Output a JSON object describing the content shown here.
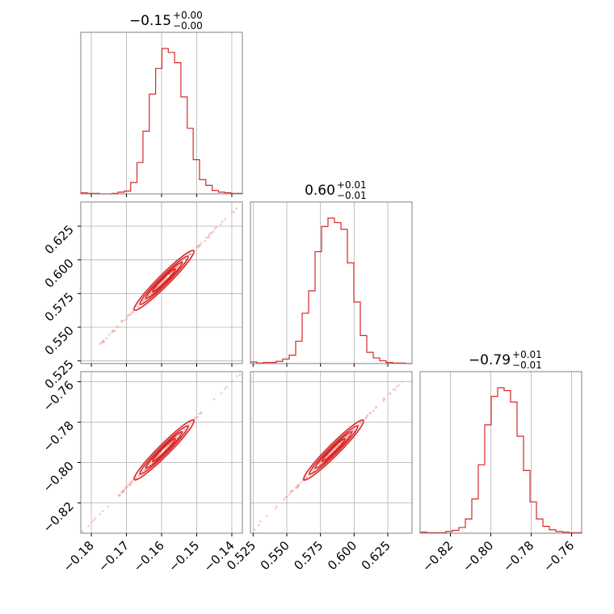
{
  "chart_data": {
    "type": "corner",
    "color": "#d62728",
    "panels": [
      {
        "kind": "hist",
        "var": 0,
        "title_value": "−0.15",
        "title_plus": "+0.00",
        "title_minus": "−0.00",
        "xlim": [
          -0.183,
          -0.137
        ],
        "xticks": [
          -0.18,
          -0.17,
          -0.16,
          -0.15,
          -0.14
        ],
        "bins_x": [
          -0.183,
          -0.1812,
          -0.1795,
          -0.1777,
          -0.1759,
          -0.1741,
          -0.1724,
          -0.1706,
          -0.1688,
          -0.167,
          -0.1653,
          -0.1635,
          -0.1617,
          -0.1599,
          -0.1581,
          -0.1563,
          -0.1545,
          -0.1527,
          -0.151,
          -0.1492,
          -0.1474,
          -0.1456,
          -0.1438,
          -0.142,
          -0.1403,
          -0.137
        ],
        "counts": [
          2,
          1,
          1,
          0,
          0,
          1,
          3,
          5,
          20,
          55,
          110,
          175,
          220,
          255,
          248,
          230,
          170,
          115,
          60,
          25,
          15,
          6,
          3,
          2,
          1
        ]
      },
      {
        "kind": "hist",
        "var": 1,
        "title_value": "0.60",
        "title_plus": "+0.01",
        "title_minus": "−0.01",
        "xlim": [
          0.523,
          0.643
        ],
        "xticks": [
          0.525,
          0.55,
          0.575,
          0.6,
          0.625
        ],
        "xtick_labels": [
          "0.525",
          "0.550",
          "0.575",
          "0.600",
          "0.625"
        ],
        "bins_x": [
          0.523,
          0.5278,
          0.5326,
          0.5374,
          0.5422,
          0.547,
          0.5518,
          0.5566,
          0.5614,
          0.5662,
          0.571,
          0.5758,
          0.5806,
          0.5854,
          0.5902,
          0.595,
          0.5998,
          0.6046,
          0.6094,
          0.6142,
          0.619,
          0.6238,
          0.6286,
          0.6334,
          0.6382,
          0.643
        ],
        "counts": [
          3,
          1,
          2,
          2,
          4,
          8,
          15,
          40,
          90,
          130,
          200,
          245,
          260,
          252,
          240,
          180,
          110,
          50,
          20,
          10,
          5,
          2,
          1,
          1,
          0
        ]
      },
      {
        "kind": "hist",
        "var": 2,
        "title_value": "−0.79",
        "title_plus": "+0.01",
        "title_minus": "−0.01",
        "xlim": [
          -0.835,
          -0.755
        ],
        "xticks": [
          -0.82,
          -0.8,
          -0.78,
          -0.76
        ],
        "xtick_labels": [
          "−0.82",
          "−0.80",
          "−0.78",
          "−0.76"
        ],
        "bins_x": [
          -0.835,
          -0.8318,
          -0.8286,
          -0.8254,
          -0.8222,
          -0.819,
          -0.8158,
          -0.8126,
          -0.8094,
          -0.8062,
          -0.803,
          -0.7998,
          -0.7966,
          -0.7934,
          -0.7902,
          -0.787,
          -0.7838,
          -0.7806,
          -0.7774,
          -0.7742,
          -0.771,
          -0.7678,
          -0.7646,
          -0.7614,
          -0.7582,
          -0.755
        ],
        "counts": [
          2,
          1,
          1,
          1,
          3,
          5,
          10,
          25,
          60,
          120,
          190,
          240,
          255,
          250,
          230,
          170,
          110,
          55,
          25,
          12,
          6,
          3,
          2,
          1,
          1
        ]
      },
      {
        "kind": "scatter",
        "xvar": 0,
        "yvar": 1,
        "xlim": [
          -0.183,
          -0.137
        ],
        "ylim": [
          0.523,
          0.643
        ],
        "yticks": [
          0.525,
          0.55,
          0.575,
          0.6,
          0.625
        ],
        "ytick_labels": [
          "0.525",
          "0.550",
          "0.575",
          "0.600",
          "0.625"
        ],
        "line": {
          "x0": -0.183,
          "y0": 0.523,
          "x1": -0.137,
          "y1": 0.643
        }
      },
      {
        "kind": "scatter",
        "xvar": 0,
        "yvar": 2,
        "xlim": [
          -0.183,
          -0.137
        ],
        "ylim": [
          -0.835,
          -0.755
        ],
        "yticks": [
          -0.82,
          -0.8,
          -0.78,
          -0.76
        ],
        "ytick_labels": [
          "−0.82",
          "−0.80",
          "−0.78",
          "−0.76"
        ],
        "line": {
          "x0": -0.183,
          "y0": -0.835,
          "x1": -0.137,
          "y1": -0.755
        }
      },
      {
        "kind": "scatter",
        "xvar": 1,
        "yvar": 2,
        "xlim": [
          0.523,
          0.643
        ],
        "ylim": [
          -0.835,
          -0.755
        ],
        "line": {
          "x0": 0.523,
          "y0": -0.835,
          "x1": 0.643,
          "y1": -0.755
        }
      }
    ],
    "bottom_xtick_labels": [
      [
        "−0.18",
        "−0.17",
        "−0.16",
        "−0.15",
        "−0.14"
      ],
      [
        "0.525",
        "0.550",
        "0.575",
        "0.600",
        "0.625"
      ],
      [
        "−0.82",
        "−0.80",
        "−0.78",
        "−0.76"
      ]
    ]
  }
}
